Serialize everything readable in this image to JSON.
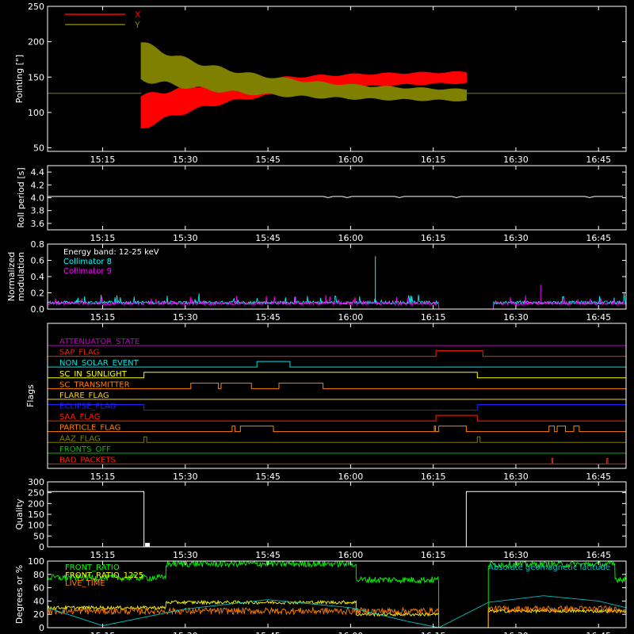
{
  "chart_data": [
    {
      "type": "line",
      "id": "pointing",
      "ylabel": "Pointing [\"]",
      "ylim": [
        45,
        250
      ],
      "yticks": [
        50,
        100,
        150,
        200,
        250
      ],
      "xlim_minutes": [
        905,
        1010
      ],
      "xtick_labels": [
        "15:15",
        "15:30",
        "15:45",
        "16:00",
        "16:15",
        "16:30",
        "16:45"
      ],
      "xtick_minutes": [
        915,
        930,
        945,
        960,
        975,
        990,
        1005
      ],
      "legend": [
        "X",
        "Y"
      ],
      "colors": {
        "X": "#ff0000",
        "Y": "#7f7f00"
      },
      "data_window_minutes": [
        922,
        981
      ],
      "series": [
        {
          "name": "X",
          "baseline": 127,
          "center_start": 100,
          "center_end": 152,
          "amp_start": 45,
          "amp_end": 14
        },
        {
          "name": "Y",
          "baseline": 127,
          "center_start": 173,
          "center_end": 122,
          "amp_start": 52,
          "amp_end": 14
        }
      ]
    },
    {
      "type": "line",
      "id": "roll",
      "ylabel": "Roll period [s]",
      "ylim": [
        3.5,
        4.5
      ],
      "yticks": [
        3.6,
        3.8,
        4.0,
        4.2,
        4.4
      ],
      "xtick_labels": [
        "15:15",
        "15:30",
        "15:45",
        "16:00",
        "16:15",
        "16:30",
        "16:45"
      ],
      "series": [
        {
          "name": "roll period",
          "value": 4.02
        }
      ]
    },
    {
      "type": "line",
      "id": "modulation",
      "ylabel": "Normalized modulation",
      "ylim": [
        0,
        0.8
      ],
      "yticks": [
        0.0,
        0.2,
        0.4,
        0.6,
        0.8
      ],
      "xtick_labels": [
        "15:15",
        "15:30",
        "15:45",
        "16:00",
        "16:15",
        "16:30",
        "16:45"
      ],
      "annotations": [
        "Energy band: 12-25 keV"
      ],
      "legend": [
        "Collimator 8",
        "Collimator 9"
      ],
      "colors": {
        "Collimator 8": "#00ffff",
        "Collimator 9": "#ff00ff"
      },
      "gap_minutes": [
        976,
        986
      ],
      "series": [
        {
          "name": "Collimator 8",
          "typical": 0.08,
          "spikes": [
            {
              "t": 964.5,
              "v": 0.65
            }
          ]
        },
        {
          "name": "Collimator 9",
          "typical": 0.07,
          "spikes": [
            {
              "t": 994.5,
              "v": 0.3
            }
          ]
        }
      ]
    },
    {
      "type": "table",
      "id": "flags",
      "ylabel": "Flags",
      "xtick_labels": [
        "15:15",
        "15:30",
        "15:45",
        "16:00",
        "16:15",
        "16:30",
        "16:45"
      ],
      "rows": [
        {
          "label": "ATTENUATOR_STATE",
          "color": "#c000c0",
          "on": []
        },
        {
          "label": "SAP_FLAG",
          "color": "#ff2000",
          "on": [
            [
              975.5,
              984
            ]
          ]
        },
        {
          "label": "NON_SOLAR_EVENT",
          "color": "#00e0e0",
          "on": [
            [
              943,
              949
            ]
          ]
        },
        {
          "label": "SC_IN_SUNLIGHT",
          "color": "#ffff00",
          "on": [
            [
              922.5,
              983
            ]
          ]
        },
        {
          "label": "SC_TRANSMITTER",
          "color": "#ff8000",
          "on": [
            [
              931,
              936
            ],
            [
              936.5,
              942
            ],
            [
              947,
              955
            ]
          ]
        },
        {
          "label": "FLARE_FLAG",
          "color": "#ffd000",
          "on": []
        },
        {
          "label": "ECLIPSE_FLAG",
          "color": "#2020ff",
          "on": [
            [
              905,
              922.5
            ],
            [
              983,
              1010
            ]
          ]
        },
        {
          "label": "SAA_FLAG",
          "color": "#ff2000",
          "on": [
            [
              975.5,
              983
            ]
          ]
        },
        {
          "label": "PARTICLE_FLAG",
          "color": "#ff8000",
          "on": [
            [
              938.5,
              939
            ],
            [
              940,
              946
            ],
            [
              975.2,
              975.4
            ],
            [
              976,
              981
            ],
            [
              996,
              997
            ],
            [
              997.5,
              999
            ],
            [
              1000.5,
              1001.5
            ]
          ]
        },
        {
          "label": "AAZ_FLAG",
          "color": "#7f7f00",
          "on": [
            [
              922.5,
              923
            ],
            [
              983,
              983.5
            ]
          ]
        },
        {
          "label": "FRONTS_OFF",
          "color": "#00c000",
          "on": []
        },
        {
          "label": "BAD_PACKETS",
          "color": "#ff2000",
          "on": [
            [
              996.5,
              996.7
            ],
            [
              1006.5,
              1006.7
            ]
          ]
        }
      ]
    },
    {
      "type": "line",
      "id": "quality",
      "ylabel": "Quality",
      "ylim": [
        0,
        300
      ],
      "yticks": [
        0,
        50,
        100,
        150,
        200,
        250,
        300
      ],
      "xtick_labels": [
        "15:15",
        "15:30",
        "15:45",
        "16:00",
        "16:15",
        "16:30",
        "16:45"
      ],
      "series": [
        {
          "name": "quality",
          "segments": [
            {
              "from": 905,
              "to": 922.5,
              "value": 255
            },
            {
              "from": 922.5,
              "to": 981,
              "value": 0
            },
            {
              "from": 981,
              "to": 1010,
              "value": 255
            }
          ]
        }
      ]
    },
    {
      "type": "line",
      "id": "front",
      "ylabel": "Degrees or %",
      "ylim": [
        0,
        100
      ],
      "yticks": [
        0,
        20,
        40,
        60,
        80,
        100
      ],
      "xtick_labels": [
        "15:15",
        "15:30",
        "15:45",
        "16:00",
        "16:15",
        "16:30",
        "16:45"
      ],
      "legend": [
        "FRONT_RATIO",
        "FRONT_RATIO_1225",
        "LIVE_TIME"
      ],
      "legend_right": "Absolute geomagnetic latitude",
      "colors": {
        "FRONT_RATIO": "#00ff00",
        "FRONT_RATIO_1225": "#ffff00",
        "LIVE_TIME": "#ff8000",
        "Absolute geomagnetic latitude": "#00c0c0"
      },
      "series": [
        {
          "name": "FRONT_RATIO",
          "levels": [
            {
              "from": 905,
              "to": 926.5,
              "value": 75
            },
            {
              "from": 926.5,
              "to": 961,
              "value": 96
            },
            {
              "from": 961,
              "to": 976,
              "value": 72
            },
            {
              "from": 985,
              "to": 1008,
              "value": 95
            },
            {
              "from": 1008,
              "to": 1010,
              "value": 73
            }
          ]
        },
        {
          "name": "FRONT_RATIO_1225",
          "levels": [
            {
              "from": 905,
              "to": 926.5,
              "value": 30
            },
            {
              "from": 926.5,
              "to": 961,
              "value": 38
            },
            {
              "from": 961,
              "to": 976,
              "value": 20
            },
            {
              "from": 985,
              "to": 1010,
              "value": 25
            }
          ]
        },
        {
          "name": "LIVE_TIME",
          "levels": [
            {
              "from": 905,
              "to": 976,
              "value": 25
            },
            {
              "from": 985,
              "to": 1010,
              "value": 28
            }
          ]
        },
        {
          "name": "Absolute geomagnetic latitude",
          "points": [
            [
              905,
              30
            ],
            [
              915,
              3
            ],
            [
              930,
              28
            ],
            [
              945,
              42
            ],
            [
              960,
              30
            ],
            [
              970,
              10
            ],
            [
              976,
              0
            ],
            [
              985,
              38
            ],
            [
              995,
              48
            ],
            [
              1005,
              40
            ],
            [
              1010,
              30
            ]
          ]
        }
      ]
    }
  ]
}
